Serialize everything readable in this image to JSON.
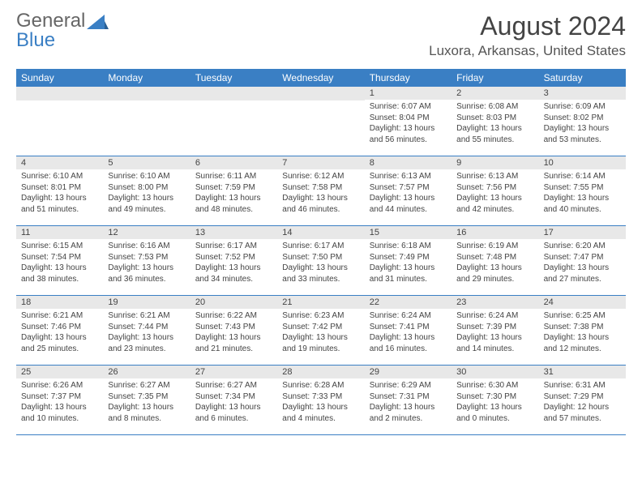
{
  "logo": {
    "part1": "General",
    "part2": "Blue"
  },
  "title": "August 2024",
  "location": "Luxora, Arkansas, United States",
  "dayNames": [
    "Sunday",
    "Monday",
    "Tuesday",
    "Wednesday",
    "Thursday",
    "Friday",
    "Saturday"
  ],
  "colors": {
    "headerBlue": "#3a7fc4",
    "cellGray": "#e8e8e8",
    "text": "#444444"
  },
  "weeks": [
    [
      null,
      null,
      null,
      null,
      {
        "n": "1",
        "sr": "Sunrise: 6:07 AM",
        "ss": "Sunset: 8:04 PM",
        "d1": "Daylight: 13 hours",
        "d2": "and 56 minutes."
      },
      {
        "n": "2",
        "sr": "Sunrise: 6:08 AM",
        "ss": "Sunset: 8:03 PM",
        "d1": "Daylight: 13 hours",
        "d2": "and 55 minutes."
      },
      {
        "n": "3",
        "sr": "Sunrise: 6:09 AM",
        "ss": "Sunset: 8:02 PM",
        "d1": "Daylight: 13 hours",
        "d2": "and 53 minutes."
      }
    ],
    [
      {
        "n": "4",
        "sr": "Sunrise: 6:10 AM",
        "ss": "Sunset: 8:01 PM",
        "d1": "Daylight: 13 hours",
        "d2": "and 51 minutes."
      },
      {
        "n": "5",
        "sr": "Sunrise: 6:10 AM",
        "ss": "Sunset: 8:00 PM",
        "d1": "Daylight: 13 hours",
        "d2": "and 49 minutes."
      },
      {
        "n": "6",
        "sr": "Sunrise: 6:11 AM",
        "ss": "Sunset: 7:59 PM",
        "d1": "Daylight: 13 hours",
        "d2": "and 48 minutes."
      },
      {
        "n": "7",
        "sr": "Sunrise: 6:12 AM",
        "ss": "Sunset: 7:58 PM",
        "d1": "Daylight: 13 hours",
        "d2": "and 46 minutes."
      },
      {
        "n": "8",
        "sr": "Sunrise: 6:13 AM",
        "ss": "Sunset: 7:57 PM",
        "d1": "Daylight: 13 hours",
        "d2": "and 44 minutes."
      },
      {
        "n": "9",
        "sr": "Sunrise: 6:13 AM",
        "ss": "Sunset: 7:56 PM",
        "d1": "Daylight: 13 hours",
        "d2": "and 42 minutes."
      },
      {
        "n": "10",
        "sr": "Sunrise: 6:14 AM",
        "ss": "Sunset: 7:55 PM",
        "d1": "Daylight: 13 hours",
        "d2": "and 40 minutes."
      }
    ],
    [
      {
        "n": "11",
        "sr": "Sunrise: 6:15 AM",
        "ss": "Sunset: 7:54 PM",
        "d1": "Daylight: 13 hours",
        "d2": "and 38 minutes."
      },
      {
        "n": "12",
        "sr": "Sunrise: 6:16 AM",
        "ss": "Sunset: 7:53 PM",
        "d1": "Daylight: 13 hours",
        "d2": "and 36 minutes."
      },
      {
        "n": "13",
        "sr": "Sunrise: 6:17 AM",
        "ss": "Sunset: 7:52 PM",
        "d1": "Daylight: 13 hours",
        "d2": "and 34 minutes."
      },
      {
        "n": "14",
        "sr": "Sunrise: 6:17 AM",
        "ss": "Sunset: 7:50 PM",
        "d1": "Daylight: 13 hours",
        "d2": "and 33 minutes."
      },
      {
        "n": "15",
        "sr": "Sunrise: 6:18 AM",
        "ss": "Sunset: 7:49 PM",
        "d1": "Daylight: 13 hours",
        "d2": "and 31 minutes."
      },
      {
        "n": "16",
        "sr": "Sunrise: 6:19 AM",
        "ss": "Sunset: 7:48 PM",
        "d1": "Daylight: 13 hours",
        "d2": "and 29 minutes."
      },
      {
        "n": "17",
        "sr": "Sunrise: 6:20 AM",
        "ss": "Sunset: 7:47 PM",
        "d1": "Daylight: 13 hours",
        "d2": "and 27 minutes."
      }
    ],
    [
      {
        "n": "18",
        "sr": "Sunrise: 6:21 AM",
        "ss": "Sunset: 7:46 PM",
        "d1": "Daylight: 13 hours",
        "d2": "and 25 minutes."
      },
      {
        "n": "19",
        "sr": "Sunrise: 6:21 AM",
        "ss": "Sunset: 7:44 PM",
        "d1": "Daylight: 13 hours",
        "d2": "and 23 minutes."
      },
      {
        "n": "20",
        "sr": "Sunrise: 6:22 AM",
        "ss": "Sunset: 7:43 PM",
        "d1": "Daylight: 13 hours",
        "d2": "and 21 minutes."
      },
      {
        "n": "21",
        "sr": "Sunrise: 6:23 AM",
        "ss": "Sunset: 7:42 PM",
        "d1": "Daylight: 13 hours",
        "d2": "and 19 minutes."
      },
      {
        "n": "22",
        "sr": "Sunrise: 6:24 AM",
        "ss": "Sunset: 7:41 PM",
        "d1": "Daylight: 13 hours",
        "d2": "and 16 minutes."
      },
      {
        "n": "23",
        "sr": "Sunrise: 6:24 AM",
        "ss": "Sunset: 7:39 PM",
        "d1": "Daylight: 13 hours",
        "d2": "and 14 minutes."
      },
      {
        "n": "24",
        "sr": "Sunrise: 6:25 AM",
        "ss": "Sunset: 7:38 PM",
        "d1": "Daylight: 13 hours",
        "d2": "and 12 minutes."
      }
    ],
    [
      {
        "n": "25",
        "sr": "Sunrise: 6:26 AM",
        "ss": "Sunset: 7:37 PM",
        "d1": "Daylight: 13 hours",
        "d2": "and 10 minutes."
      },
      {
        "n": "26",
        "sr": "Sunrise: 6:27 AM",
        "ss": "Sunset: 7:35 PM",
        "d1": "Daylight: 13 hours",
        "d2": "and 8 minutes."
      },
      {
        "n": "27",
        "sr": "Sunrise: 6:27 AM",
        "ss": "Sunset: 7:34 PM",
        "d1": "Daylight: 13 hours",
        "d2": "and 6 minutes."
      },
      {
        "n": "28",
        "sr": "Sunrise: 6:28 AM",
        "ss": "Sunset: 7:33 PM",
        "d1": "Daylight: 13 hours",
        "d2": "and 4 minutes."
      },
      {
        "n": "29",
        "sr": "Sunrise: 6:29 AM",
        "ss": "Sunset: 7:31 PM",
        "d1": "Daylight: 13 hours",
        "d2": "and 2 minutes."
      },
      {
        "n": "30",
        "sr": "Sunrise: 6:30 AM",
        "ss": "Sunset: 7:30 PM",
        "d1": "Daylight: 13 hours",
        "d2": "and 0 minutes."
      },
      {
        "n": "31",
        "sr": "Sunrise: 6:31 AM",
        "ss": "Sunset: 7:29 PM",
        "d1": "Daylight: 12 hours",
        "d2": "and 57 minutes."
      }
    ]
  ]
}
